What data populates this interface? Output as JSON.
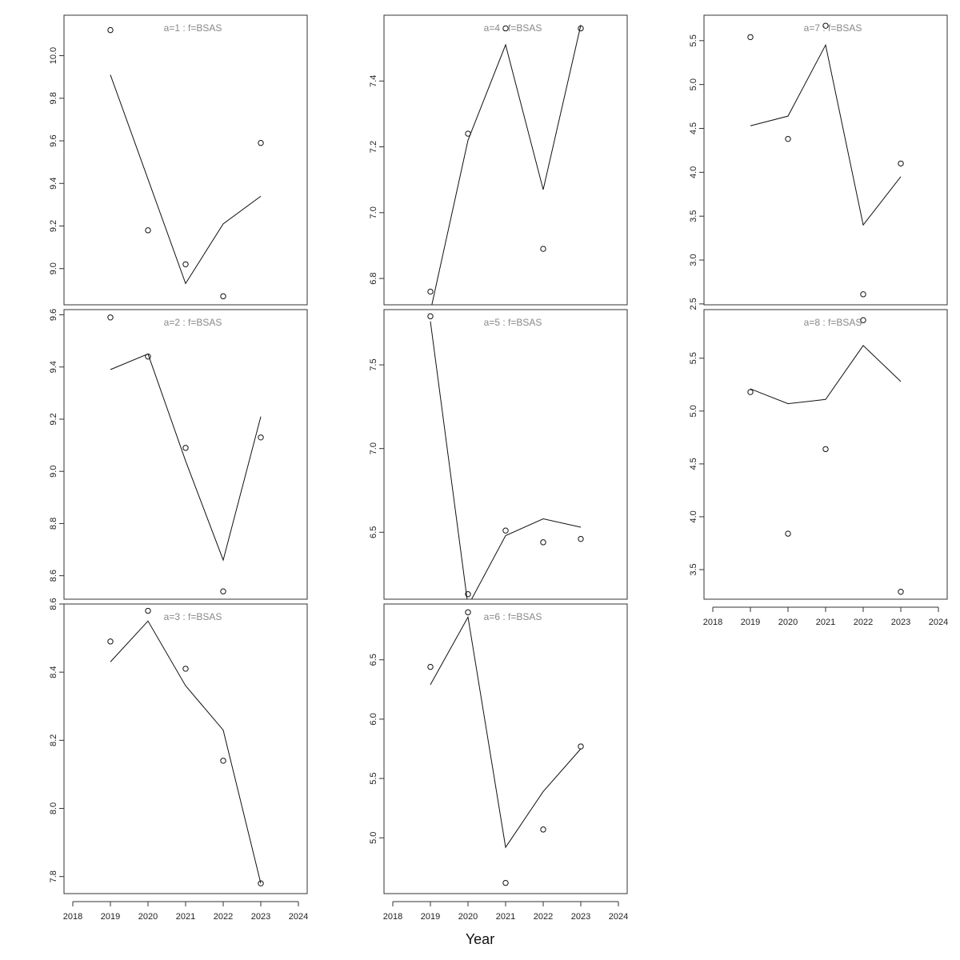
{
  "figure": {
    "xlabel": "Year",
    "x_ticks": [
      2018,
      2019,
      2020,
      2021,
      2022,
      2023,
      2024
    ],
    "xlim": [
      2018,
      2024
    ],
    "line_color": "#111111",
    "title_color": "#888888"
  },
  "chart_data": [
    {
      "type": "line",
      "title": "a=1 : f=BSAS",
      "x": [
        2019,
        2020,
        2021,
        2022,
        2023
      ],
      "fitted": [
        9.91,
        9.42,
        8.93,
        9.21,
        9.34
      ],
      "observed": [
        10.12,
        9.18,
        9.02,
        8.87,
        9.59
      ],
      "y_ticks": [
        9.0,
        9.2,
        9.4,
        9.6,
        9.8,
        10.0
      ],
      "y_tick_labels": [
        "9.0",
        "9.2",
        "9.4",
        "9.6",
        "9.8",
        "10.0"
      ],
      "ylim": [
        8.83,
        10.19
      ],
      "show_x_axis": false
    },
    {
      "type": "line",
      "title": "a=2 : f=BSAS",
      "x": [
        2019,
        2020,
        2021,
        2022,
        2023
      ],
      "fitted": [
        9.39,
        9.45,
        9.04,
        8.66,
        9.21
      ],
      "observed": [
        9.59,
        9.44,
        9.09,
        8.54,
        9.13
      ],
      "y_ticks": [
        8.6,
        8.8,
        9.0,
        9.2,
        9.4,
        9.6
      ],
      "y_tick_labels": [
        "8.6",
        "8.8",
        "9.0",
        "9.2",
        "9.4",
        "9.6"
      ],
      "ylim": [
        8.51,
        9.62
      ],
      "show_x_axis": false
    },
    {
      "type": "line",
      "title": "a=3 : f=BSAS",
      "x": [
        2019,
        2020,
        2021,
        2022,
        2023
      ],
      "fitted": [
        8.43,
        8.55,
        8.36,
        8.23,
        7.78
      ],
      "observed": [
        8.49,
        8.58,
        8.41,
        8.14,
        7.78
      ],
      "y_ticks": [
        7.8,
        8.0,
        8.2,
        8.4,
        8.6
      ],
      "y_tick_labels": [
        "7.8",
        "8.0",
        "8.2",
        "8.4",
        "8.6"
      ],
      "ylim": [
        7.75,
        8.6
      ],
      "show_x_axis": true
    },
    {
      "type": "line",
      "title": "a=4 : f=BSAS",
      "x": [
        2019,
        2020,
        2021,
        2022,
        2023
      ],
      "fitted": [
        6.7,
        7.22,
        7.51,
        7.07,
        7.57
      ],
      "observed": [
        6.76,
        7.24,
        7.56,
        6.89,
        7.56
      ],
      "y_ticks": [
        6.8,
        7.0,
        7.2,
        7.4
      ],
      "y_tick_labels": [
        "6.8",
        "7.0",
        "7.2",
        "7.4"
      ],
      "ylim": [
        6.72,
        7.6
      ],
      "show_x_axis": false
    },
    {
      "type": "line",
      "title": "a=5 : f=BSAS",
      "x": [
        2019,
        2020,
        2021,
        2022,
        2023
      ],
      "fitted": [
        7.76,
        6.06,
        6.48,
        6.58,
        6.53
      ],
      "observed": [
        7.79,
        6.13,
        6.51,
        6.44,
        6.46
      ],
      "y_ticks": [
        6.5,
        7.0,
        7.5
      ],
      "y_tick_labels": [
        "6.5",
        "7.0",
        "7.5"
      ],
      "ylim": [
        6.1,
        7.83
      ],
      "show_x_axis": false
    },
    {
      "type": "line",
      "title": "a=6 : f=BSAS",
      "x": [
        2019,
        2020,
        2021,
        2022,
        2023
      ],
      "fitted": [
        6.29,
        6.86,
        4.92,
        5.39,
        5.75
      ],
      "observed": [
        6.44,
        6.9,
        4.62,
        5.07,
        5.77
      ],
      "y_ticks": [
        5.0,
        5.5,
        6.0,
        6.5
      ],
      "y_tick_labels": [
        "5.0",
        "5.5",
        "6.0",
        "6.5"
      ],
      "ylim": [
        4.53,
        6.97
      ],
      "show_x_axis": true
    },
    {
      "type": "line",
      "title": "a=7 : f=BSAS",
      "x": [
        2019,
        2020,
        2021,
        2022,
        2023
      ],
      "fitted": [
        4.53,
        4.64,
        5.45,
        3.4,
        3.95
      ],
      "observed": [
        5.54,
        4.38,
        5.67,
        2.61,
        4.1
      ],
      "y_ticks": [
        2.5,
        3.0,
        3.5,
        4.0,
        4.5,
        5.0,
        5.5
      ],
      "y_tick_labels": [
        "2.5",
        "3.0",
        "3.5",
        "4.0",
        "4.5",
        "5.0",
        "5.5"
      ],
      "ylim": [
        2.49,
        5.79
      ],
      "show_x_axis": false
    },
    {
      "type": "line",
      "title": "a=8 : f=BSAS",
      "x": [
        2019,
        2020,
        2021,
        2022,
        2023
      ],
      "fitted": [
        5.21,
        5.07,
        5.11,
        5.62,
        5.28
      ],
      "observed": [
        5.18,
        3.84,
        4.64,
        5.86,
        3.29
      ],
      "y_ticks": [
        3.5,
        4.0,
        4.5,
        5.0,
        5.5
      ],
      "y_tick_labels": [
        "3.5",
        "4.0",
        "4.5",
        "5.0",
        "5.5"
      ],
      "ylim": [
        3.22,
        5.96
      ],
      "show_x_axis": true
    }
  ]
}
